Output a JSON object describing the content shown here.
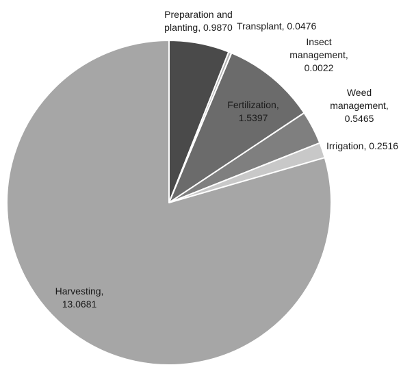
{
  "chart_data": {
    "type": "pie",
    "start": "12 o'clock",
    "direction": "clockwise",
    "slices": [
      {
        "name": "Preparation and planting",
        "value": 0.987,
        "value_label": "0.9870",
        "color": "#4a4a4a",
        "label_lines": [
          "Preparation and",
          "planting, 0.9870"
        ]
      },
      {
        "name": "Transplant",
        "value": 0.0476,
        "value_label": "0.0476",
        "color": "#b0b0b0",
        "label_lines": [
          "Transplant, 0.0476"
        ]
      },
      {
        "name": "Insect management",
        "value": 0.0022,
        "value_label": "0.0022",
        "color": "#9a9a9a",
        "label_lines": [
          "Insect",
          "management,",
          "0.0022"
        ]
      },
      {
        "name": "Fertilization",
        "value": 1.5397,
        "value_label": "1.5397",
        "color": "#6b6b6b",
        "label_lines": [
          "Fertilization,",
          "1.5397"
        ]
      },
      {
        "name": "Weed management",
        "value": 0.5465,
        "value_label": "0.5465",
        "color": "#7f7f7f",
        "label_lines": [
          "Weed",
          "management,",
          "0.5465"
        ]
      },
      {
        "name": "Irrigation",
        "value": 0.2516,
        "value_label": "0.2516",
        "color": "#c8c8c8",
        "label_lines": [
          "Irrigation, 0.2516"
        ]
      },
      {
        "name": "Harvesting",
        "value": 13.0681,
        "value_label": "13.0681",
        "color": "#a6a6a6",
        "label_lines": [
          "Harvesting,",
          "13.0681"
        ]
      }
    ]
  }
}
